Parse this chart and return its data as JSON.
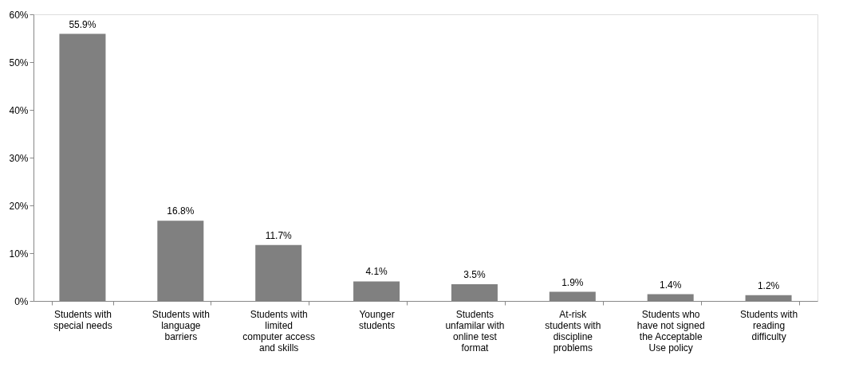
{
  "chart_data": {
    "type": "bar",
    "categories": [
      "Students with special needs",
      "Students with language barriers",
      "Students with limited computer access and skills",
      "Younger students",
      "Students unfamilar with online test format",
      "At-risk students with discipline problems",
      "Students who have not signed the Acceptable Use policy",
      "Students with reading difficulty"
    ],
    "values": [
      55.9,
      16.8,
      11.7,
      4.1,
      3.5,
      1.9,
      1.4,
      1.2
    ],
    "value_labels": [
      "55.9%",
      "16.8%",
      "11.7%",
      "4.1%",
      "3.5%",
      "1.9%",
      "1.4%",
      "1.2%"
    ],
    "color": "#808080",
    "ylim": [
      0,
      60
    ],
    "yticks": [
      {
        "value": 0,
        "label": "0%"
      },
      {
        "value": 10,
        "label": "10%"
      },
      {
        "value": 20,
        "label": "20%"
      },
      {
        "value": 30,
        "label": "30%"
      },
      {
        "value": 40,
        "label": "40%"
      },
      {
        "value": 50,
        "label": "50%"
      },
      {
        "value": 60,
        "label": "60%"
      }
    ],
    "grid": false
  }
}
